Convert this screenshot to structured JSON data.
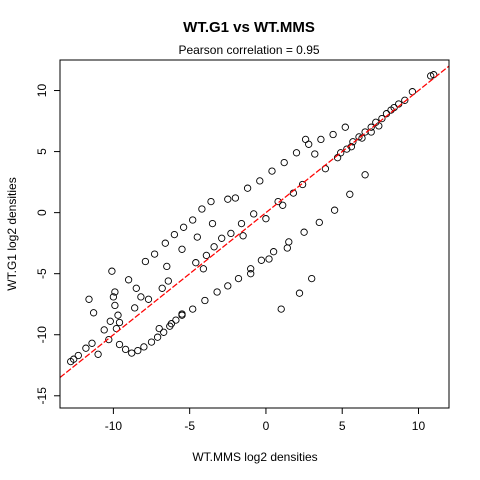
{
  "chart_data": {
    "type": "scatter",
    "title": "WT.G1 vs WT.MMS",
    "subtitle": "Pearson correlation =  0.95",
    "xlabel": "WT.MMS log2 densities",
    "ylabel": "WT.G1 log2 densities",
    "xlim": [
      -13.5,
      12.0
    ],
    "ylim": [
      -16.0,
      12.5
    ],
    "x_ticks": [
      -10,
      -5,
      0,
      5,
      10
    ],
    "x_tick_labels": [
      "-10",
      "-5",
      "0",
      "5",
      "10"
    ],
    "y_ticks": [
      -15,
      -10,
      -5,
      0,
      5,
      10
    ],
    "y_tick_labels": [
      "-15",
      "-10",
      "-5",
      "0",
      "5",
      "10"
    ],
    "grid": false,
    "point_style": "open-circle",
    "point_color": "#000000",
    "line_color": "#ff0000",
    "fit_line": {
      "slope": 1.0,
      "intercept": 0.0
    },
    "points": {
      "x": [
        11.0,
        10.8,
        9.6,
        9.1,
        8.7,
        8.4,
        8.2,
        7.9,
        7.6,
        7.2,
        6.9,
        6.5,
        6.1,
        5.7,
        5.3,
        4.9,
        -12.8,
        -12.6,
        -12.3,
        -11.8,
        -11.4,
        -11.0,
        -11.6,
        -11.3,
        -10.6,
        -10.3,
        -10.1,
        -9.9,
        -10.2,
        -9.6,
        -9.2,
        -8.8,
        -8.4,
        -8.0,
        -7.5,
        -7.1,
        -6.7,
        -6.3,
        -5.9,
        -5.5,
        -9.0,
        -8.5,
        -7.9,
        -7.3,
        -6.6,
        -6.0,
        -5.4,
        -4.8,
        -4.2,
        -3.6,
        -7.0,
        -6.2,
        -5.5,
        -4.8,
        -4.0,
        -3.2,
        -2.5,
        -1.8,
        -1.0,
        -0.3,
        -2.0,
        -1.2,
        -0.4,
        0.4,
        1.2,
        2.0,
        2.8,
        3.6,
        4.4,
        5.2,
        0.5,
        1.5,
        2.5,
        3.5,
        4.5,
        5.5,
        6.5,
        1.0,
        2.2,
        3.0,
        -1.0,
        0.2,
        1.4,
        -3.5,
        -4.5,
        -5.5,
        -6.5,
        -2.5,
        2.6,
        3.2,
        -9.8,
        -9.7,
        -9.9,
        -10.0,
        -9.6,
        -8.6,
        -8.2,
        -7.7,
        -6.8,
        -6.4,
        -4.6,
        -3.9,
        -3.4,
        -2.9,
        -2.3,
        -1.6,
        -0.8,
        0.8,
        1.8,
        2.4,
        3.9,
        4.7,
        5.6,
        6.3,
        6.9,
        7.4,
        1.1,
        0.0,
        -1.5,
        -4.1
      ],
      "y": [
        11.3,
        11.2,
        9.9,
        9.2,
        8.9,
        8.6,
        8.4,
        8.1,
        7.7,
        7.4,
        7.0,
        6.6,
        6.2,
        5.8,
        5.2,
        4.9,
        -12.2,
        -12.0,
        -11.7,
        -11.1,
        -10.7,
        -11.6,
        -7.1,
        -8.2,
        -9.6,
        -10.4,
        -4.8,
        -6.5,
        -8.9,
        -10.8,
        -11.2,
        -11.5,
        -11.3,
        -11.0,
        -10.6,
        -10.2,
        -9.8,
        -9.3,
        -8.8,
        -8.3,
        -5.5,
        -6.2,
        -4.0,
        -3.4,
        -2.5,
        -1.8,
        -1.2,
        -0.6,
        0.3,
        0.9,
        -9.5,
        -9.1,
        -8.4,
        -7.9,
        -7.2,
        -6.5,
        -6.0,
        -5.4,
        -4.6,
        -3.9,
        1.2,
        2.0,
        2.6,
        3.4,
        4.1,
        4.9,
        5.6,
        6.0,
        6.4,
        7.0,
        -3.2,
        -2.4,
        -1.6,
        -0.8,
        0.2,
        1.5,
        3.1,
        -7.9,
        -6.6,
        -5.4,
        -5.0,
        -3.8,
        -2.9,
        -0.9,
        -2.0,
        -3.0,
        -4.4,
        1.1,
        6.0,
        4.8,
        -9.5,
        -8.4,
        -7.6,
        -6.9,
        -9.0,
        -7.8,
        -6.9,
        -7.1,
        -6.2,
        -5.6,
        -4.1,
        -3.5,
        -2.8,
        -2.1,
        -1.7,
        -0.9,
        -0.1,
        0.9,
        1.6,
        2.3,
        3.6,
        4.5,
        5.4,
        6.1,
        6.6,
        7.1,
        0.6,
        -0.5,
        -1.9,
        -4.6
      ]
    }
  }
}
